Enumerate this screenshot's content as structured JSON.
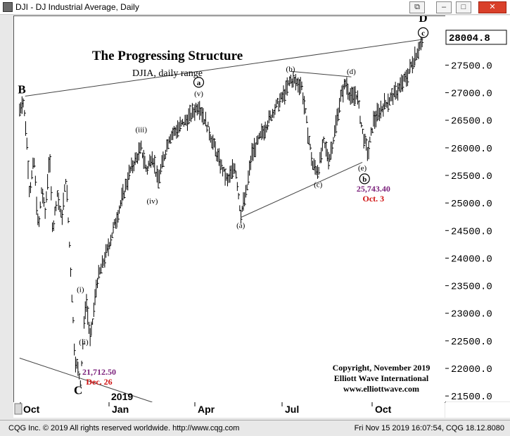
{
  "window": {
    "title": "DJI - DJ Industrial Average, Daily",
    "minimize": "–",
    "maximize": "□",
    "close": "✕",
    "restore": "⧉"
  },
  "status": {
    "left": "CQG Inc. © 2019 All rights reserved worldwide. http://www.cqg.com",
    "right": "Fri Nov 15 2019 16:07:54, CQG 18.12.8080"
  },
  "chart_data": {
    "type": "bar",
    "title": "The Progressing Structure",
    "subtitle": "DJIA, daily range",
    "x_ticks": [
      "Oct",
      "Jan",
      "Apr",
      "Jul",
      "Oct"
    ],
    "year_label": "2019",
    "ylim": [
      21400,
      28400
    ],
    "y_ticks": [
      "21500.0",
      "22000.0",
      "22500.0",
      "23000.0",
      "23500.0",
      "24000.0",
      "24500.0",
      "25000.0",
      "25500.0",
      "26000.0",
      "26500.0",
      "27000.0",
      "27500.0"
    ],
    "last_price": "28004.8",
    "series_points": [
      {
        "t": 0,
        "y": 26700
      },
      {
        "t": 0.03,
        "y": 26900
      },
      {
        "t": 0.06,
        "y": 26300
      },
      {
        "t": 0.09,
        "y": 25200
      },
      {
        "t": 0.13,
        "y": 25800
      },
      {
        "t": 0.17,
        "y": 24500
      },
      {
        "t": 0.2,
        "y": 25300
      },
      {
        "t": 0.23,
        "y": 24800
      },
      {
        "t": 0.27,
        "y": 25900
      },
      {
        "t": 0.3,
        "y": 24500
      },
      {
        "t": 0.34,
        "y": 25200
      },
      {
        "t": 0.38,
        "y": 24700
      },
      {
        "t": 0.42,
        "y": 25500
      },
      {
        "t": 0.45,
        "y": 24300
      },
      {
        "t": 0.5,
        "y": 22200
      },
      {
        "t": 0.55,
        "y": 21800
      },
      {
        "t": 0.6,
        "y": 23300
      },
      {
        "t": 0.64,
        "y": 22500
      },
      {
        "t": 0.7,
        "y": 23600
      },
      {
        "t": 0.8,
        "y": 24200
      },
      {
        "t": 0.9,
        "y": 24900
      },
      {
        "t": 1.0,
        "y": 25600
      },
      {
        "t": 1.1,
        "y": 26000
      },
      {
        "t": 1.15,
        "y": 25600
      },
      {
        "t": 1.2,
        "y": 25900
      },
      {
        "t": 1.25,
        "y": 25400
      },
      {
        "t": 1.35,
        "y": 26200
      },
      {
        "t": 1.45,
        "y": 26400
      },
      {
        "t": 1.55,
        "y": 26600
      },
      {
        "t": 1.62,
        "y": 26800
      },
      {
        "t": 1.7,
        "y": 26400
      },
      {
        "t": 1.8,
        "y": 25800
      },
      {
        "t": 1.88,
        "y": 25400
      },
      {
        "t": 1.95,
        "y": 25700
      },
      {
        "t": 2.0,
        "y": 24800
      },
      {
        "t": 2.05,
        "y": 25200
      },
      {
        "t": 2.1,
        "y": 25900
      },
      {
        "t": 2.2,
        "y": 26300
      },
      {
        "t": 2.3,
        "y": 26700
      },
      {
        "t": 2.4,
        "y": 27000
      },
      {
        "t": 2.45,
        "y": 27250
      },
      {
        "t": 2.5,
        "y": 27200
      },
      {
        "t": 2.55,
        "y": 27150
      },
      {
        "t": 2.6,
        "y": 26400
      },
      {
        "t": 2.65,
        "y": 25700
      },
      {
        "t": 2.7,
        "y": 25600
      },
      {
        "t": 2.75,
        "y": 26100
      },
      {
        "t": 2.8,
        "y": 25800
      },
      {
        "t": 2.85,
        "y": 26300
      },
      {
        "t": 2.9,
        "y": 26900
      },
      {
        "t": 2.95,
        "y": 27200
      },
      {
        "t": 3.0,
        "y": 26900
      },
      {
        "t": 3.05,
        "y": 27000
      },
      {
        "t": 3.1,
        "y": 26300
      },
      {
        "t": 3.15,
        "y": 25900
      },
      {
        "t": 3.2,
        "y": 26500
      },
      {
        "t": 3.3,
        "y": 26800
      },
      {
        "t": 3.4,
        "y": 27000
      },
      {
        "t": 3.5,
        "y": 27300
      },
      {
        "t": 3.58,
        "y": 27700
      },
      {
        "t": 3.65,
        "y": 28000
      }
    ],
    "wave_labels": [
      {
        "text": "B",
        "t": 0.02,
        "y": 27000,
        "style": "big"
      },
      {
        "text": "C",
        "t": 0.53,
        "y": 21550,
        "style": "big"
      },
      {
        "text": "D",
        "t": 3.65,
        "y": 28300,
        "style": "big"
      },
      {
        "text": "(i)",
        "t": 0.55,
        "y": 23400,
        "style": "small"
      },
      {
        "text": "(ii)",
        "t": 0.58,
        "y": 22450,
        "style": "small"
      },
      {
        "text": "(iii)",
        "t": 1.1,
        "y": 26300,
        "style": "small"
      },
      {
        "text": "(iv)",
        "t": 1.2,
        "y": 25000,
        "style": "small"
      },
      {
        "text": "(v)",
        "t": 1.62,
        "y": 26950,
        "style": "small"
      },
      {
        "text": "(a)",
        "t": 2.0,
        "y": 24560,
        "style": "small"
      },
      {
        "text": "(b)",
        "t": 2.45,
        "y": 27400,
        "style": "small"
      },
      {
        "text": "(c)",
        "t": 2.7,
        "y": 25300,
        "style": "small"
      },
      {
        "text": "(d)",
        "t": 3.0,
        "y": 27350,
        "style": "small"
      },
      {
        "text": "(e)",
        "t": 3.1,
        "y": 25600,
        "style": "small"
      }
    ],
    "circled_labels": [
      {
        "text": "a",
        "t": 1.62,
        "y": 27150
      },
      {
        "text": "b",
        "t": 3.12,
        "y": 25400
      },
      {
        "text": "c",
        "t": 3.65,
        "y": 28050
      }
    ],
    "annotations": [
      {
        "text": "21,712.50",
        "t": 0.72,
        "y": 21900,
        "color": "#7a1f7a"
      },
      {
        "text": "Dec. 26",
        "t": 0.72,
        "y": 21720,
        "color": "#d01010"
      },
      {
        "text": "25,743.40",
        "t": 3.2,
        "y": 25220,
        "color": "#7a1f7a"
      },
      {
        "text": "Oct. 3",
        "t": 3.2,
        "y": 25040,
        "color": "#d01010"
      }
    ],
    "trendlines": [
      {
        "t1": 0.05,
        "y1": 26950,
        "t2": 3.65,
        "y2": 27980
      },
      {
        "t1": 2.0,
        "y1": 24750,
        "t2": 3.1,
        "y2": 25750
      },
      {
        "t1": 2.45,
        "y1": 27400,
        "t2": 3.0,
        "y2": 27300
      },
      {
        "t1": 0,
        "y1": 22200,
        "t2": 1.2,
        "y2": 21400
      }
    ],
    "copyright": [
      "Copyright, November 2019",
      "Elliott Wave International",
      "www.elliottwave.com"
    ]
  }
}
